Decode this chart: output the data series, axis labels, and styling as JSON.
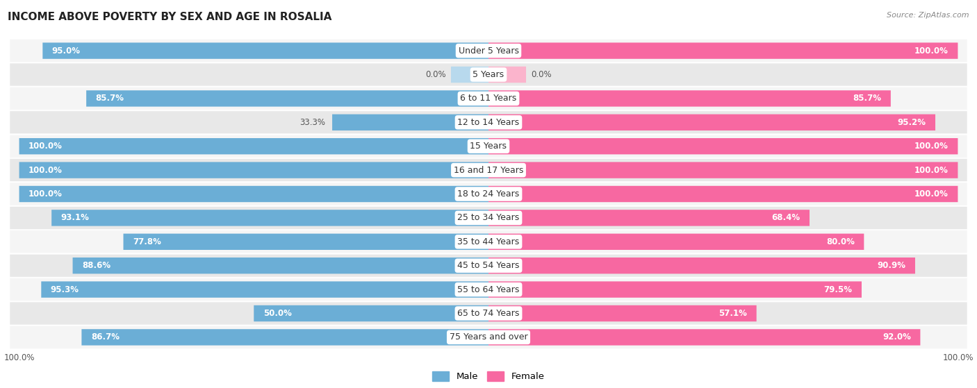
{
  "title": "INCOME ABOVE POVERTY BY SEX AND AGE IN ROSALIA",
  "source": "Source: ZipAtlas.com",
  "categories": [
    "Under 5 Years",
    "5 Years",
    "6 to 11 Years",
    "12 to 14 Years",
    "15 Years",
    "16 and 17 Years",
    "18 to 24 Years",
    "25 to 34 Years",
    "35 to 44 Years",
    "45 to 54 Years",
    "55 to 64 Years",
    "65 to 74 Years",
    "75 Years and over"
  ],
  "male_values": [
    95.0,
    0.0,
    85.7,
    33.3,
    100.0,
    100.0,
    100.0,
    93.1,
    77.8,
    88.6,
    95.3,
    50.0,
    86.7
  ],
  "female_values": [
    100.0,
    0.0,
    85.7,
    95.2,
    100.0,
    100.0,
    100.0,
    68.4,
    80.0,
    90.9,
    79.5,
    57.1,
    92.0
  ],
  "male_color": "#6baed6",
  "male_color_light": "#b8d9ed",
  "female_color": "#f768a1",
  "female_color_light": "#fbb4cc",
  "bar_height": 0.68,
  "row_bg_even": "#f5f5f5",
  "row_bg_odd": "#e8e8e8",
  "label_fontsize": 9,
  "title_fontsize": 11,
  "legend_fontsize": 9.5,
  "value_fontsize": 8.5,
  "axis_label_fontsize": 8.5
}
